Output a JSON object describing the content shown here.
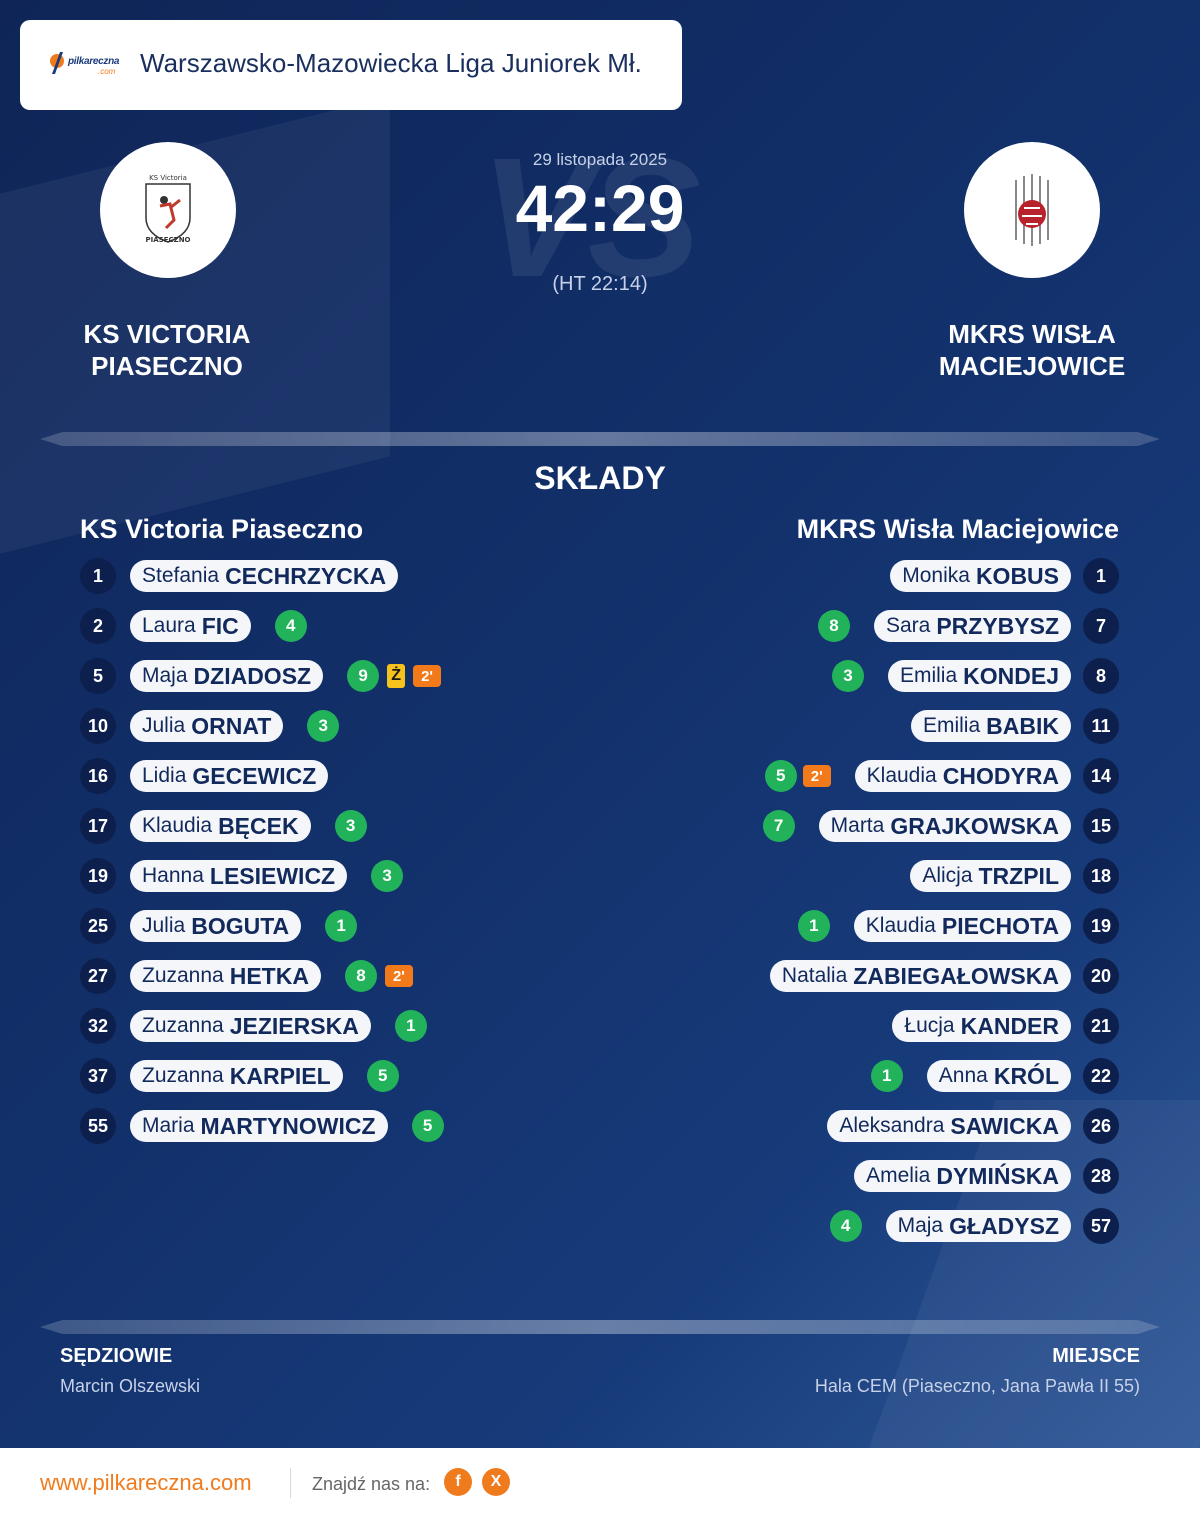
{
  "header": {
    "logo_text": "pilkareczna",
    "logo_domain": ".com",
    "league": "Warszawsko-Mazowiecka Liga Juniorek Mł."
  },
  "match": {
    "date": "29 listopada 2025",
    "score": "42:29",
    "halftime": "(HT 22:14)",
    "vs": "VS",
    "home_name": "KS VICTORIA PIASECZNO",
    "away_name": "MKRS WISŁA MACIEJOWICE",
    "home_crest_text_top": "KS Victoria",
    "home_crest_text_bottom": "PIASECZNO"
  },
  "lineups": {
    "title": "SKŁADY",
    "home_team": "KS Victoria Piaseczno",
    "away_team": "MKRS Wisła Maciejowice",
    "home": [
      {
        "num": "1",
        "first": "Stefania",
        "last": "CECHRZYCKA",
        "goals": "",
        "yellow": "",
        "susp": ""
      },
      {
        "num": "2",
        "first": "Laura",
        "last": "FIC",
        "goals": "4",
        "yellow": "",
        "susp": ""
      },
      {
        "num": "5",
        "first": "Maja",
        "last": "DZIADOSZ",
        "goals": "9",
        "yellow": "Ż",
        "susp": "2'"
      },
      {
        "num": "10",
        "first": "Julia",
        "last": "ORNAT",
        "goals": "3",
        "yellow": "",
        "susp": ""
      },
      {
        "num": "16",
        "first": "Lidia",
        "last": "GECEWICZ",
        "goals": "",
        "yellow": "",
        "susp": ""
      },
      {
        "num": "17",
        "first": "Klaudia",
        "last": "BĘCEK",
        "goals": "3",
        "yellow": "",
        "susp": ""
      },
      {
        "num": "19",
        "first": "Hanna",
        "last": "LESIEWICZ",
        "goals": "3",
        "yellow": "",
        "susp": ""
      },
      {
        "num": "25",
        "first": "Julia",
        "last": "BOGUTA",
        "goals": "1",
        "yellow": "",
        "susp": ""
      },
      {
        "num": "27",
        "first": "Zuzanna",
        "last": "HETKA",
        "goals": "8",
        "yellow": "",
        "susp": "2'"
      },
      {
        "num": "32",
        "first": "Zuzanna",
        "last": "JEZIERSKA",
        "goals": "1",
        "yellow": "",
        "susp": ""
      },
      {
        "num": "37",
        "first": "Zuzanna",
        "last": "KARPIEL",
        "goals": "5",
        "yellow": "",
        "susp": ""
      },
      {
        "num": "55",
        "first": "Maria",
        "last": "MARTYNOWICZ",
        "goals": "5",
        "yellow": "",
        "susp": ""
      }
    ],
    "away": [
      {
        "num": "1",
        "first": "Monika",
        "last": "KOBUS",
        "goals": "",
        "susp": ""
      },
      {
        "num": "7",
        "first": "Sara",
        "last": "PRZYBYSZ",
        "goals": "8",
        "susp": ""
      },
      {
        "num": "8",
        "first": "Emilia",
        "last": "KONDEJ",
        "goals": "3",
        "susp": ""
      },
      {
        "num": "11",
        "first": "Emilia",
        "last": "BABIK",
        "goals": "",
        "susp": ""
      },
      {
        "num": "14",
        "first": "Klaudia",
        "last": "CHODYRA",
        "goals": "5",
        "susp": "2'"
      },
      {
        "num": "15",
        "first": "Marta",
        "last": "GRAJKOWSKA",
        "goals": "7",
        "susp": ""
      },
      {
        "num": "18",
        "first": "Alicja",
        "last": "TRZPIL",
        "goals": "",
        "susp": ""
      },
      {
        "num": "19",
        "first": "Klaudia",
        "last": "PIECHOTA",
        "goals": "1",
        "susp": ""
      },
      {
        "num": "20",
        "first": "Natalia",
        "last": "ZABIEGAŁOWSKA",
        "goals": "",
        "susp": ""
      },
      {
        "num": "21",
        "first": "Łucja",
        "last": "KANDER",
        "goals": "",
        "susp": ""
      },
      {
        "num": "22",
        "first": "Anna",
        "last": "KRÓL",
        "goals": "1",
        "susp": ""
      },
      {
        "num": "26",
        "first": "Aleksandra",
        "last": "SAWICKA",
        "goals": "",
        "susp": ""
      },
      {
        "num": "28",
        "first": "Amelia",
        "last": "DYMIŃSKA",
        "goals": "",
        "susp": ""
      },
      {
        "num": "57",
        "first": "Maja",
        "last": "GŁADYSZ",
        "goals": "4",
        "susp": ""
      }
    ]
  },
  "officials": {
    "referees_label": "SĘDZIOWIE",
    "referees_value": "Marcin Olszewski",
    "venue_label": "MIEJSCE",
    "venue_value": "Hala CEM (Piaseczno, Jana Pawła II 55)"
  },
  "footer": {
    "site": "www.pilkareczna.com",
    "find_us": "Znajdź nas na:",
    "social": [
      {
        "icon": "facebook-icon",
        "glyph": "f"
      },
      {
        "icon": "x-icon",
        "glyph": "X"
      }
    ],
    "accent_color": "#f07b1d"
  }
}
